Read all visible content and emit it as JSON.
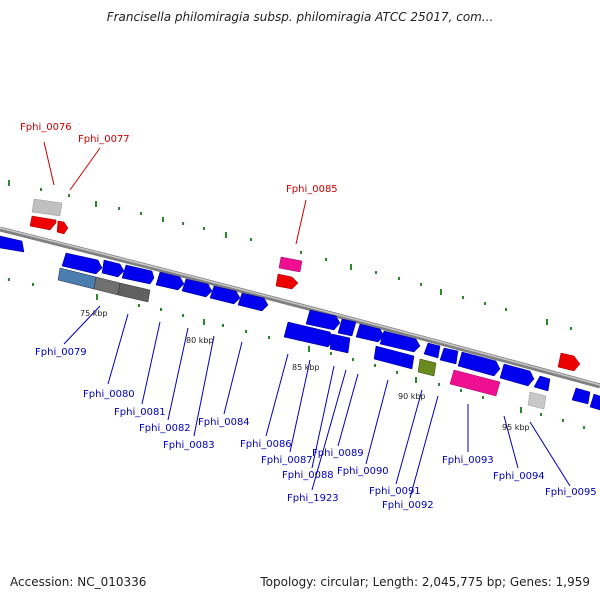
{
  "title": "Francisella philomiragia subsp. philomiragia ATCC 25017, com...",
  "accession_label": "Accession: NC_010336",
  "summary_label": "Topology: circular; Length: 2,045,775 bp; Genes: 1,959",
  "colors": {
    "forward_gene": "#0000ee",
    "highlight_gene": "#ee0000",
    "pink_gene": "#ee1090",
    "grey_gene": "#b0b0b0",
    "dark_grey_gene": "#606060",
    "steel_gene": "#4a7db0",
    "olive_gene": "#6a8a20",
    "backbone": "#909090",
    "dots": "#2a8a2a",
    "label_red": "#cc0000",
    "label_blue": "#0000bb"
  },
  "ticks": [
    {
      "label": "75 kbp"
    },
    {
      "label": "80 kbp"
    },
    {
      "label": "85 kbp"
    },
    {
      "label": "90 kbp"
    },
    {
      "label": "95 kbp"
    }
  ],
  "genes_top": [
    {
      "label": "Fphi_0076"
    },
    {
      "label": "Fphi_0077"
    },
    {
      "label": "Fphi_0085"
    }
  ],
  "genes_bottom": [
    {
      "label": "Fphi_0079"
    },
    {
      "label": "Fphi_0080"
    },
    {
      "label": "Fphi_0081"
    },
    {
      "label": "Fphi_0082"
    },
    {
      "label": "Fphi_0083"
    },
    {
      "label": "Fphi_0084"
    },
    {
      "label": "Fphi_0086"
    },
    {
      "label": "Fphi_0087"
    },
    {
      "label": "Fphi_0088"
    },
    {
      "label": "Fphi_1923"
    },
    {
      "label": "Fphi_0089"
    },
    {
      "label": "Fphi_0090"
    },
    {
      "label": "Fphi_0091"
    },
    {
      "label": "Fphi_0092"
    },
    {
      "label": "Fphi_0093"
    },
    {
      "label": "Fphi_0094"
    },
    {
      "label": "Fphi_0095"
    }
  ]
}
